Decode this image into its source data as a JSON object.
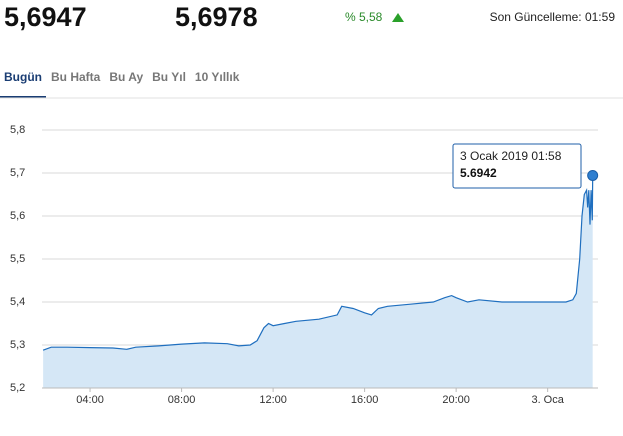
{
  "header": {
    "buy": "5,6947",
    "sell": "5,6978",
    "change": "% 5,58",
    "updated": "Son Güncelleme: 01:59"
  },
  "tabs": {
    "items": [
      "Bugün",
      "Bu Hafta",
      "Bu Ay",
      "Bu Yıl",
      "10 Yıllık"
    ],
    "active": 0
  },
  "chart_data": {
    "type": "area",
    "x": [
      1.95,
      2.3,
      3,
      4,
      5,
      5.6,
      6,
      7,
      8,
      9,
      10,
      10.5,
      11,
      11.3,
      11.6,
      11.8,
      12,
      12.5,
      13,
      14,
      14.8,
      15,
      15.5,
      16,
      16.3,
      16.6,
      17,
      18,
      19,
      19.5,
      19.8,
      20,
      20.5,
      21,
      22,
      23,
      24,
      24.8,
      25.1,
      25.25,
      25.4,
      25.5,
      25.6,
      25.7,
      25.75,
      25.8,
      25.85,
      25.9,
      25.95,
      25.967
    ],
    "values": [
      5.288,
      5.295,
      5.295,
      5.294,
      5.293,
      5.29,
      5.295,
      5.298,
      5.302,
      5.305,
      5.303,
      5.298,
      5.3,
      5.31,
      5.34,
      5.35,
      5.345,
      5.35,
      5.355,
      5.36,
      5.37,
      5.39,
      5.385,
      5.375,
      5.37,
      5.385,
      5.39,
      5.395,
      5.4,
      5.41,
      5.415,
      5.41,
      5.4,
      5.405,
      5.4,
      5.4,
      5.4,
      5.4,
      5.405,
      5.42,
      5.5,
      5.6,
      5.65,
      5.66,
      5.62,
      5.66,
      5.58,
      5.66,
      5.59,
      5.6942
    ],
    "color": "#1f6fbf",
    "fill_color": "#d5e7f6",
    "xlim": [
      1.9,
      26.2
    ],
    "ylim": [
      5.2,
      5.8
    ],
    "xticks": [
      {
        "value": 4,
        "label": "04:00"
      },
      {
        "value": 8,
        "label": "08:00"
      },
      {
        "value": 12,
        "label": "12:00"
      },
      {
        "value": 16,
        "label": "16:00"
      },
      {
        "value": 20,
        "label": "20:00"
      },
      {
        "value": 24,
        "label": "3. Oca"
      }
    ],
    "yticks": [
      {
        "value": 5.2,
        "label": "5,2"
      },
      {
        "value": 5.3,
        "label": "5,3"
      },
      {
        "value": 5.4,
        "label": "5,4"
      },
      {
        "value": 5.5,
        "label": "5,5"
      },
      {
        "value": 5.6,
        "label": "5,6"
      },
      {
        "value": 5.7,
        "label": "5,7"
      },
      {
        "value": 5.8,
        "label": "5,8"
      }
    ],
    "grid": true,
    "tooltip": {
      "date": "3 Ocak 2019 01:58",
      "value": "5.6942"
    }
  }
}
